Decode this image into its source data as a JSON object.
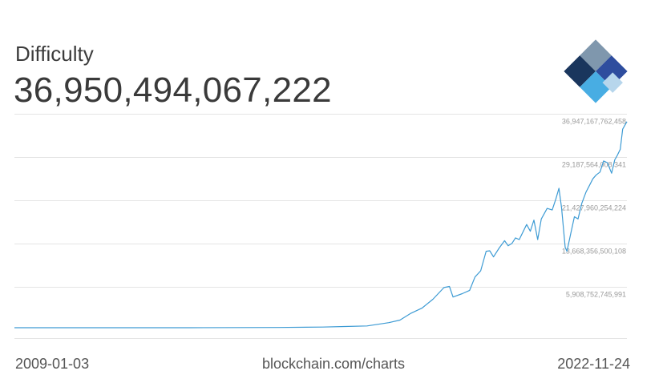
{
  "metric": {
    "label": "Difficulty",
    "value": "36,950,494,067,222"
  },
  "footer": {
    "start_date": "2009-01-03",
    "source": "blockchain.com/charts",
    "end_date": "2022-11-24"
  },
  "logo": {
    "name": "blockchain-logo-icon",
    "colors": [
      "#7f97ad",
      "#2e4d9e",
      "#1a365d",
      "#48ade3",
      "#b7d6ec"
    ]
  },
  "colors": {
    "line": "#3d9bd4",
    "grid": "#e4e4e4",
    "tick_text": "#9a9a9a"
  },
  "chart_data": {
    "type": "line",
    "title": "Difficulty",
    "x_start": "2009-01-03",
    "x_end": "2022-11-24",
    "xlabel": "",
    "ylabel": "",
    "ylim": [
      0,
      37500000000000
    ],
    "yticks": [
      {
        "value": 36947167762458,
        "label": "36,947,167,762,458"
      },
      {
        "value": 29187564008341,
        "label": "29,187,564,008,341"
      },
      {
        "value": 21427960254224,
        "label": "21,427,960,254,224"
      },
      {
        "value": 13668356500108,
        "label": "13,668,356,500,108"
      },
      {
        "value": 5908752745991,
        "label": "5,908,752,745,991"
      }
    ],
    "grid": true,
    "legend": "none",
    "series": [
      {
        "x": [
          "2009-01-03",
          "2013-01-01",
          "2015-01-01",
          "2016-01-01",
          "2016-07-01",
          "2017-01-01",
          "2017-07-01",
          "2017-10-01",
          "2018-01-01",
          "2018-04-01",
          "2018-07-01",
          "2018-10-01",
          "2018-11-15",
          "2018-12-15",
          "2019-03-01",
          "2019-05-01",
          "2019-06-15",
          "2019-08-01",
          "2019-09-15",
          "2019-10-15",
          "2019-11-15",
          "2020-01-01",
          "2020-02-15",
          "2020-03-15",
          "2020-04-15",
          "2020-05-15",
          "2020-06-15",
          "2020-08-15",
          "2020-09-15",
          "2020-10-15",
          "2020-11-15",
          "2020-12-15",
          "2021-02-01",
          "2021-03-15",
          "2021-04-15",
          "2021-05-10",
          "2021-06-01",
          "2021-07-01",
          "2021-07-15",
          "2021-08-15",
          "2021-09-15",
          "2021-10-15",
          "2021-11-15",
          "2021-12-20",
          "2022-01-20",
          "2022-02-15",
          "2022-03-15",
          "2022-04-15",
          "2022-05-15",
          "2022-06-15",
          "2022-07-20",
          "2022-08-15",
          "2022-09-05",
          "2022-09-30",
          "2022-10-20",
          "2022-11-24"
        ],
        "y": [
          1,
          3000000,
          40000000000,
          120000000000,
          210000000000,
          320000000000,
          900000000000,
          1360000000000,
          2600000000000,
          3500000000000,
          5100000000000,
          7200000000000,
          7400000000000,
          5500000000000,
          6100000000000,
          6700000000000,
          9100000000000,
          10200000000000,
          13700000000000,
          13800000000000,
          12700000000000,
          14300000000000,
          15600000000000,
          14700000000000,
          15100000000000,
          16100000000000,
          15800000000000,
          18500000000000,
          17300000000000,
          19300000000000,
          15800000000000,
          19500000000000,
          21400000000000,
          21100000000000,
          23100000000000,
          25000000000000,
          21500000000000,
          14400000000000,
          13700000000000,
          16800000000000,
          19900000000000,
          19500000000000,
          22300000000000,
          24300000000000,
          25600000000000,
          26700000000000,
          27400000000000,
          27900000000000,
          29900000000000,
          29600000000000,
          27700000000000,
          30100000000000,
          30900000000000,
          32000000000000,
          35600000000000,
          36950000000000
        ]
      }
    ]
  }
}
